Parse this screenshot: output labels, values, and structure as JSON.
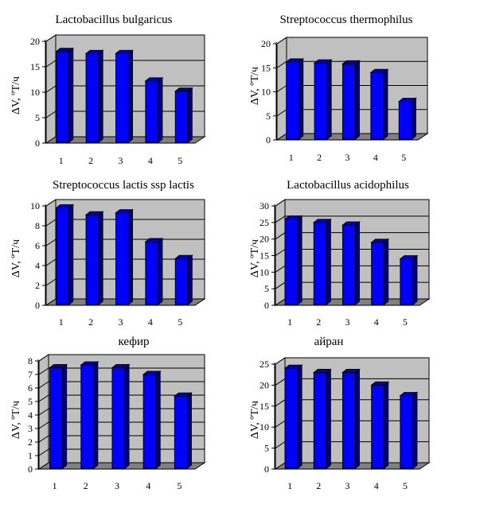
{
  "chart_data": [
    {
      "type": "bar",
      "title": "Lactobacillus bulgaricus",
      "ylabel": "ΔV, ºT/ч",
      "categories": [
        "1",
        "2",
        "3",
        "4",
        "5"
      ],
      "values": [
        18.0,
        17.6,
        17.6,
        12.2,
        10.2
      ],
      "ylim": [
        0,
        20
      ],
      "yticks": [
        0,
        5,
        10,
        15,
        20
      ],
      "grid": true,
      "bar_color": "#0000ff"
    },
    {
      "type": "bar",
      "title": "Streptococcus thermophilus",
      "ylabel": "ΔV, ºT/ч",
      "categories": [
        "1",
        "2",
        "3",
        "4",
        "5"
      ],
      "values": [
        16.2,
        16.0,
        15.8,
        14.0,
        8.0
      ],
      "ylim": [
        0,
        20
      ],
      "yticks": [
        0,
        5,
        10,
        15,
        20
      ],
      "grid": true,
      "bar_color": "#0000ff"
    },
    {
      "type": "bar",
      "title": "Streptococcus lactis ssp lactis",
      "ylabel": "ΔV, ºT/ч",
      "categories": [
        "1",
        "2",
        "3",
        "4",
        "5"
      ],
      "values": [
        9.8,
        9.1,
        9.3,
        6.4,
        4.7
      ],
      "ylim": [
        0,
        10
      ],
      "yticks": [
        0,
        2,
        4,
        6,
        8,
        10
      ],
      "grid": true,
      "bar_color": "#0000ff"
    },
    {
      "type": "bar",
      "title": "Lactobacillus acidophilus",
      "ylabel": "ΔV, ºT/ч",
      "categories": [
        "1",
        "2",
        "3",
        "4",
        "5"
      ],
      "values": [
        26.0,
        25.0,
        24.2,
        19.0,
        14.0
      ],
      "ylim": [
        0,
        30
      ],
      "yticks": [
        0,
        5,
        10,
        15,
        20,
        25,
        30
      ],
      "grid": true,
      "bar_color": "#0000ff"
    },
    {
      "type": "bar",
      "title": "кефир",
      "ylabel": "ΔV, ºT/ч",
      "categories": [
        "1",
        "2",
        "3",
        "4",
        "5"
      ],
      "values": [
        7.5,
        7.7,
        7.5,
        7.0,
        5.4
      ],
      "ylim": [
        0,
        8
      ],
      "yticks": [
        0,
        1,
        2,
        3,
        4,
        5,
        6,
        7,
        8
      ],
      "grid": true,
      "bar_color": "#0000ff"
    },
    {
      "type": "bar",
      "title": "айран",
      "ylabel": "ΔV, ºT/ч",
      "categories": [
        "1",
        "2",
        "3",
        "4",
        "5"
      ],
      "values": [
        24.0,
        23.0,
        23.0,
        20.0,
        17.5
      ],
      "ylim": [
        0,
        25
      ],
      "yticks": [
        0,
        5,
        10,
        15,
        20,
        25
      ],
      "grid": true,
      "bar_color": "#0000ff"
    }
  ]
}
